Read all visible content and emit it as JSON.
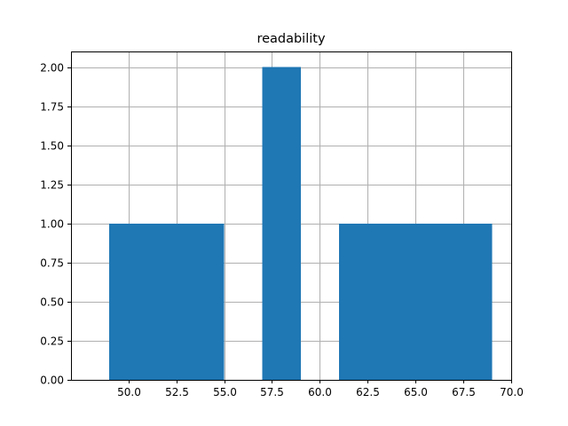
{
  "chart_data": {
    "type": "bar",
    "title": "readability",
    "xlabel": "",
    "ylabel": "",
    "bins": [
      {
        "x0": 49.0,
        "x1": 55.0,
        "value": 1
      },
      {
        "x0": 57.0,
        "x1": 59.0,
        "value": 2
      },
      {
        "x0": 61.0,
        "x1": 69.0,
        "value": 1
      }
    ],
    "xlim": [
      47.0,
      70.0
    ],
    "ylim": [
      0.0,
      2.0
    ],
    "xticks": [
      50.0,
      52.5,
      55.0,
      57.5,
      60.0,
      62.5,
      65.0,
      67.5,
      70.0
    ],
    "xtick_labels": [
      "50.0",
      "52.5",
      "55.0",
      "57.5",
      "60.0",
      "62.5",
      "65.0",
      "67.5",
      "70.0"
    ],
    "yticks": [
      0.0,
      0.25,
      0.5,
      0.75,
      1.0,
      1.25,
      1.5,
      1.75,
      2.0
    ],
    "ytick_labels": [
      "0.00",
      "0.25",
      "0.50",
      "0.75",
      "1.00",
      "1.25",
      "1.50",
      "1.75",
      "2.00"
    ],
    "grid": true,
    "bar_color": "#1f77b4",
    "grid_color": "#b0b0b0"
  }
}
